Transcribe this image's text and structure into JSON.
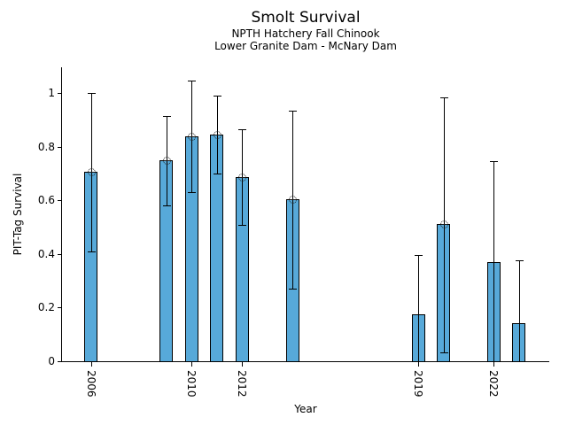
{
  "figure": {
    "title": "Smolt Survival",
    "subtitle_line1": "NPTH Hatchery Fall Chinook",
    "subtitle_line2": "Lower Granite Dam - McNary Dam"
  },
  "chart_data": {
    "type": "bar",
    "title": "Smolt Survival",
    "subtitle": [
      "NPTH Hatchery Fall Chinook",
      "Lower Granite Dam - McNary Dam"
    ],
    "xlabel": "Year",
    "ylabel": "PIT-Tag Survival",
    "x_tick_labels": [
      "2006",
      "2010",
      "2012",
      "2019",
      "2022"
    ],
    "x_tick_years": [
      2006,
      2010,
      2012,
      2019,
      2022
    ],
    "y_ticks": [
      0,
      0.2,
      0.4,
      0.6,
      0.8,
      1
    ],
    "y_tick_labels": [
      "0",
      "0.2",
      "0.4",
      "0.6",
      "0.8",
      "1"
    ],
    "xlim": [
      2004.85,
      2024.2
    ],
    "ylim": [
      0,
      1.096
    ],
    "grid": false,
    "legend": null,
    "bar_width_years": 0.53,
    "bar_color": "#57A9D9",
    "edge_color": "#000000",
    "error_color": "#000000",
    "bars": [
      {
        "year": 2006,
        "value": 0.705,
        "ci_low": 0.41,
        "ci_high": 1.0,
        "marker": true
      },
      {
        "year": 2009,
        "value": 0.748,
        "ci_low": 0.58,
        "ci_high": 0.915,
        "marker": true
      },
      {
        "year": 2010,
        "value": 0.838,
        "ci_low": 0.63,
        "ci_high": 1.045,
        "marker": true
      },
      {
        "year": 2011,
        "value": 0.845,
        "ci_low": 0.7,
        "ci_high": 0.99,
        "marker": true
      },
      {
        "year": 2012,
        "value": 0.687,
        "ci_low": 0.51,
        "ci_high": 0.865,
        "marker": true
      },
      {
        "year": 2014,
        "value": 0.605,
        "ci_low": 0.27,
        "ci_high": 0.935,
        "marker": true
      },
      {
        "year": 2019,
        "value": 0.175,
        "ci_low": 0.0,
        "ci_high": 0.397,
        "marker": false
      },
      {
        "year": 2020,
        "value": 0.512,
        "ci_low": 0.033,
        "ci_high": 0.985,
        "marker": true
      },
      {
        "year": 2022,
        "value": 0.369,
        "ci_low": 0.0,
        "ci_high": 0.745,
        "marker": false
      },
      {
        "year": 2023,
        "value": 0.143,
        "ci_low": 0.0,
        "ci_high": 0.375,
        "marker": false
      }
    ]
  }
}
